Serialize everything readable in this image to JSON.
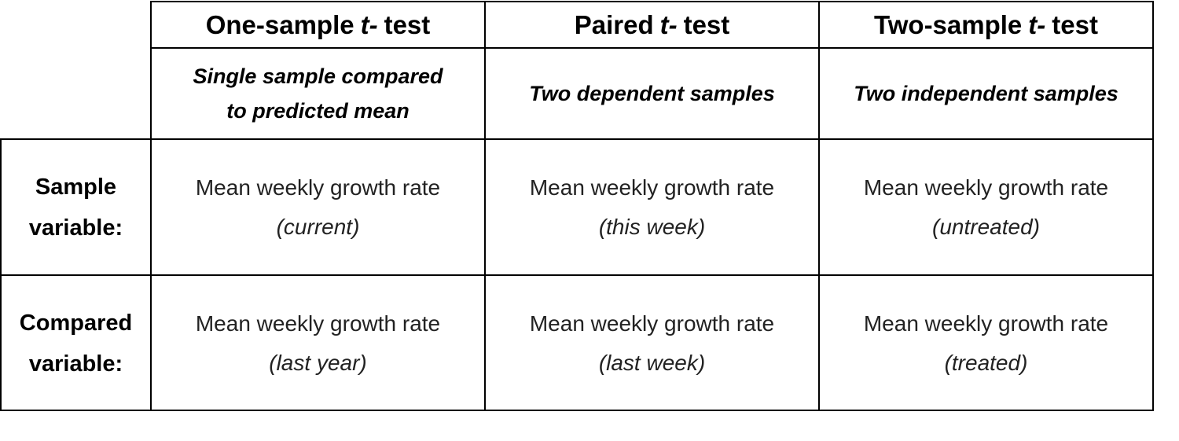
{
  "columns": [
    {
      "title_prefix": "One-sample",
      "title_italic": "t-",
      "title_suffix": "test",
      "description": [
        "Single sample compared",
        "to predicted mean"
      ]
    },
    {
      "title_prefix": "Paired",
      "title_italic": "t-",
      "title_suffix": "test",
      "description": [
        "Two dependent samples"
      ]
    },
    {
      "title_prefix": "Two-sample",
      "title_italic": "t-",
      "title_suffix": "test",
      "description": [
        "Two independent samples"
      ]
    }
  ],
  "rows": [
    {
      "label": [
        "Sample",
        "variable:"
      ],
      "cells": [
        {
          "text": "Mean weekly growth rate",
          "note": "(current)"
        },
        {
          "text": "Mean weekly growth rate",
          "note": "(this week)"
        },
        {
          "text": "Mean weekly growth rate",
          "note": "(untreated)"
        }
      ]
    },
    {
      "label": [
        "Compared",
        "variable:"
      ],
      "cells": [
        {
          "text": "Mean weekly growth rate",
          "note": "(last year)"
        },
        {
          "text": "Mean weekly growth rate",
          "note": "(last week)"
        },
        {
          "text": "Mean weekly growth rate",
          "note": "(treated)"
        }
      ]
    }
  ]
}
